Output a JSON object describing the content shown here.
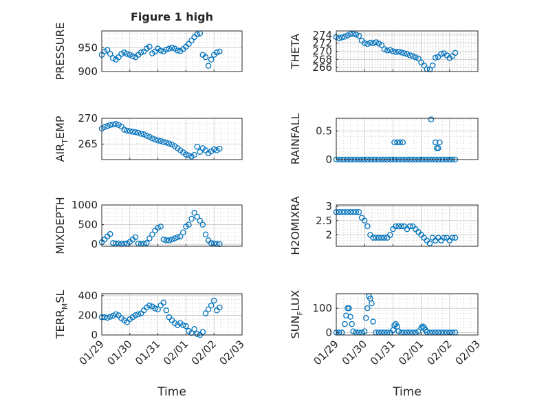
{
  "title": "Figure 1 high",
  "colors": {
    "marker": "#0072BD",
    "axes": "#262626",
    "grid": "#c8c8c8"
  },
  "xaxis": {
    "label": "Time",
    "range": [
      "01/29",
      "02/03"
    ],
    "ticks": [
      "01/29",
      "01/30",
      "01/31",
      "02/01",
      "02/02",
      "02/03"
    ]
  },
  "chart_data": [
    {
      "type": "scatter",
      "ylabel": "PRESSURE",
      "ylim": [
        900,
        985
      ],
      "yticks": [
        900,
        950
      ],
      "x": [
        0,
        0.1,
        0.2,
        0.3,
        0.4,
        0.5,
        0.6,
        0.7,
        0.8,
        0.9,
        1.0,
        1.1,
        1.2,
        1.3,
        1.4,
        1.5,
        1.6,
        1.7,
        1.8,
        1.9,
        2.0,
        2.1,
        2.2,
        2.3,
        2.4,
        2.5,
        2.6,
        2.7,
        2.8,
        2.9,
        3.0,
        3.1,
        3.2,
        3.3,
        3.4,
        3.5,
        3.6,
        3.7,
        3.8,
        3.9,
        4.0,
        4.1,
        4.2
      ],
      "values": [
        935,
        942,
        945,
        937,
        928,
        925,
        930,
        937,
        940,
        937,
        935,
        932,
        930,
        935,
        940,
        942,
        948,
        952,
        938,
        942,
        948,
        944,
        942,
        946,
        948,
        950,
        948,
        944,
        943,
        947,
        952,
        958,
        965,
        972,
        978,
        980,
        935,
        930,
        912,
        925,
        935,
        940,
        942
      ],
      "grid": true,
      "legend": "none"
    },
    {
      "type": "scatter",
      "ylabel": "THETA",
      "ylim": [
        265,
        275
      ],
      "yticks": [
        266,
        268,
        270,
        272,
        274
      ],
      "x": [
        0,
        0.1,
        0.2,
        0.3,
        0.4,
        0.5,
        0.6,
        0.7,
        0.8,
        0.9,
        1.0,
        1.1,
        1.2,
        1.3,
        1.4,
        1.5,
        1.6,
        1.7,
        1.8,
        1.9,
        2.0,
        2.1,
        2.2,
        2.3,
        2.4,
        2.5,
        2.6,
        2.7,
        2.8,
        2.9,
        3.0,
        3.1,
        3.2,
        3.3,
        3.4,
        3.5,
        3.6,
        3.7,
        3.8,
        3.9,
        4.0,
        4.1,
        4.2
      ],
      "values": [
        273.5,
        273.2,
        273.4,
        273.6,
        273.9,
        274.2,
        274.3,
        274.1,
        273.8,
        272.6,
        272.0,
        271.8,
        272.1,
        272.0,
        272.2,
        271.9,
        271.5,
        270.5,
        270.2,
        270.3,
        270.0,
        269.8,
        269.9,
        269.7,
        269.5,
        269.3,
        269.0,
        268.8,
        268.5,
        268.2,
        267.2,
        266.5,
        265.6,
        265.5,
        266.5,
        268.4,
        268.6,
        269.3,
        269.5,
        269.0,
        268.3,
        268.8,
        269.6
      ],
      "grid": true,
      "legend": "none"
    },
    {
      "type": "scatter",
      "ylabel": "AIR_TEMP",
      "ylim": [
        262,
        270
      ],
      "yticks": [
        265,
        270
      ],
      "x": [
        0,
        0.1,
        0.2,
        0.3,
        0.4,
        0.5,
        0.6,
        0.7,
        0.8,
        0.9,
        1.0,
        1.1,
        1.2,
        1.3,
        1.4,
        1.5,
        1.6,
        1.7,
        1.8,
        1.9,
        2.0,
        2.1,
        2.2,
        2.3,
        2.4,
        2.5,
        2.6,
        2.7,
        2.8,
        2.9,
        3.0,
        3.1,
        3.2,
        3.3,
        3.4,
        3.5,
        3.6,
        3.7,
        3.8,
        3.9,
        4.0,
        4.1,
        4.2
      ],
      "values": [
        268.0,
        268.3,
        268.5,
        268.7,
        268.8,
        268.9,
        268.7,
        268.4,
        267.8,
        267.6,
        267.5,
        267.4,
        267.3,
        267.2,
        267.0,
        266.9,
        266.6,
        266.4,
        266.1,
        265.9,
        265.7,
        265.6,
        265.4,
        265.3,
        265.1,
        264.9,
        264.6,
        264.2,
        263.8,
        263.4,
        263.0,
        262.8,
        262.6,
        262.9,
        264.5,
        263.5,
        264.2,
        263.8,
        263.2,
        263.6,
        264.0,
        263.8,
        264.1
      ],
      "grid": true,
      "legend": "none"
    },
    {
      "type": "scatter",
      "ylabel": "RAINFALL",
      "ylim": [
        0,
        0.72
      ],
      "yticks": [
        0,
        0.5
      ],
      "x": [
        0,
        0.1,
        0.2,
        0.3,
        0.4,
        0.5,
        0.6,
        0.7,
        0.8,
        0.9,
        1.0,
        1.1,
        1.2,
        1.3,
        1.4,
        1.5,
        1.6,
        1.7,
        1.8,
        1.9,
        2.0,
        2.1,
        2.2,
        2.3,
        2.4,
        2.5,
        2.6,
        2.7,
        2.8,
        2.9,
        3.0,
        3.1,
        3.2,
        3.3,
        3.4,
        3.5,
        3.6,
        3.7,
        3.8,
        3.9,
        4.0,
        4.1,
        4.2,
        2.05,
        2.15,
        2.25,
        2.35,
        3.35,
        3.5,
        3.55,
        3.6,
        3.65
      ],
      "values": [
        0,
        0,
        0,
        0,
        0,
        0,
        0,
        0,
        0,
        0,
        0,
        0,
        0,
        0,
        0,
        0,
        0,
        0,
        0,
        0,
        0,
        0,
        0,
        0,
        0,
        0,
        0,
        0,
        0,
        0,
        0,
        0,
        0,
        0,
        0,
        0,
        0,
        0,
        0,
        0,
        0,
        0,
        0,
        0.3,
        0.3,
        0.3,
        0.3,
        0.7,
        0.3,
        0.2,
        0.2,
        0.3
      ],
      "grid": true,
      "legend": "none"
    },
    {
      "type": "scatter",
      "ylabel": "MIXDEPTH",
      "ylim": [
        -50,
        1000
      ],
      "yticks": [
        0,
        500,
        1000
      ],
      "x": [
        0,
        0.1,
        0.2,
        0.3,
        0.4,
        0.5,
        0.6,
        0.7,
        0.8,
        0.9,
        1.0,
        1.1,
        1.2,
        1.3,
        1.4,
        1.5,
        1.6,
        1.7,
        1.8,
        1.9,
        2.0,
        2.1,
        2.2,
        2.3,
        2.4,
        2.5,
        2.6,
        2.7,
        2.8,
        2.9,
        3.0,
        3.1,
        3.2,
        3.3,
        3.4,
        3.5,
        3.6,
        3.7,
        3.8,
        3.9,
        4.0,
        4.1,
        4.2
      ],
      "values": [
        50,
        120,
        200,
        260,
        30,
        20,
        20,
        10,
        15,
        20,
        60,
        120,
        180,
        20,
        10,
        15,
        30,
        150,
        250,
        350,
        420,
        450,
        120,
        100,
        100,
        120,
        150,
        180,
        200,
        300,
        450,
        500,
        650,
        800,
        700,
        600,
        500,
        250,
        100,
        30,
        20,
        10,
        5
      ],
      "grid": true,
      "legend": "none"
    },
    {
      "type": "scatter",
      "ylabel": "H2OMIXRA",
      "ylim": [
        1.6,
        3.05
      ],
      "yticks": [
        2,
        2.5,
        3
      ],
      "x": [
        0,
        0.1,
        0.2,
        0.3,
        0.4,
        0.5,
        0.6,
        0.7,
        0.8,
        0.9,
        1.0,
        1.1,
        1.2,
        1.3,
        1.4,
        1.5,
        1.6,
        1.7,
        1.8,
        1.9,
        2.0,
        2.1,
        2.2,
        2.3,
        2.4,
        2.5,
        2.6,
        2.7,
        2.8,
        2.9,
        3.0,
        3.1,
        3.2,
        3.3,
        3.4,
        3.5,
        3.6,
        3.7,
        3.8,
        3.9,
        4.0,
        4.1,
        4.2
      ],
      "values": [
        2.8,
        2.8,
        2.8,
        2.8,
        2.8,
        2.8,
        2.8,
        2.8,
        2.8,
        2.6,
        2.5,
        2.3,
        2.0,
        1.9,
        1.9,
        1.9,
        1.9,
        1.9,
        1.9,
        2.0,
        2.2,
        2.3,
        2.3,
        2.3,
        2.3,
        2.2,
        2.3,
        2.3,
        2.2,
        2.1,
        2.0,
        1.9,
        1.8,
        1.7,
        1.9,
        1.8,
        1.9,
        1.8,
        1.9,
        1.9,
        1.8,
        1.9,
        1.9
      ],
      "grid": true,
      "legend": "none"
    },
    {
      "type": "scatter",
      "ylabel": "TERR_MSL",
      "ylim": [
        0,
        420
      ],
      "yticks": [
        0,
        200,
        400
      ],
      "x": [
        0,
        0.1,
        0.2,
        0.3,
        0.4,
        0.5,
        0.6,
        0.7,
        0.8,
        0.9,
        1.0,
        1.1,
        1.2,
        1.3,
        1.4,
        1.5,
        1.6,
        1.7,
        1.8,
        1.9,
        2.0,
        2.1,
        2.2,
        2.3,
        2.4,
        2.5,
        2.6,
        2.7,
        2.8,
        2.9,
        3.0,
        3.1,
        3.2,
        3.3,
        3.4,
        3.5,
        3.6,
        3.7,
        3.8,
        3.9,
        4.0,
        4.1,
        4.2
      ],
      "values": [
        180,
        180,
        175,
        185,
        195,
        210,
        200,
        170,
        150,
        130,
        160,
        180,
        200,
        210,
        220,
        250,
        280,
        300,
        290,
        270,
        260,
        300,
        330,
        250,
        180,
        150,
        120,
        100,
        120,
        100,
        90,
        40,
        20,
        60,
        10,
        0,
        30,
        220,
        260,
        300,
        350,
        250,
        280
      ],
      "grid": true,
      "legend": "none"
    },
    {
      "type": "scatter",
      "ylabel": "SUN_FLUX",
      "ylim": [
        -10,
        160
      ],
      "yticks": [
        0,
        100
      ],
      "x": [
        0,
        0.1,
        0.2,
        0.3,
        0.35,
        0.4,
        0.45,
        0.5,
        0.55,
        0.6,
        0.7,
        0.8,
        0.9,
        1.0,
        1.05,
        1.1,
        1.15,
        1.2,
        1.25,
        1.3,
        1.4,
        1.5,
        1.6,
        1.7,
        1.8,
        1.9,
        2.0,
        2.05,
        2.1,
        2.15,
        2.2,
        2.3,
        2.4,
        2.5,
        2.6,
        2.7,
        2.8,
        2.9,
        3.0,
        3.05,
        3.1,
        3.15,
        3.2,
        3.3,
        3.4,
        3.5,
        3.6,
        3.7,
        3.8,
        3.9,
        4.0,
        4.1,
        4.2
      ],
      "values": [
        0,
        0,
        0,
        35,
        70,
        100,
        100,
        65,
        35,
        5,
        0,
        0,
        0,
        5,
        60,
        100,
        150,
        140,
        120,
        45,
        0,
        0,
        0,
        0,
        0,
        0,
        10,
        30,
        35,
        25,
        5,
        0,
        0,
        0,
        0,
        0,
        0,
        5,
        20,
        25,
        20,
        10,
        2,
        0,
        0,
        0,
        0,
        0,
        0,
        0,
        0,
        0,
        0
      ],
      "grid": true,
      "legend": "none"
    }
  ]
}
